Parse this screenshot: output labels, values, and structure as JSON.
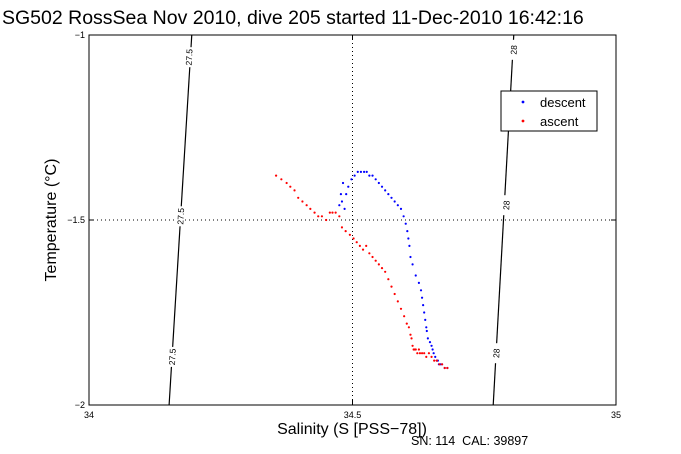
{
  "chart_data": {
    "type": "scatter",
    "title": "SG502 RossSea Nov 2010, dive 205 started 11-Dec-2010 16:42:16",
    "xlabel": "Salinity (S [PSS−78])",
    "ylabel": "Temperature (°C)",
    "xlim": [
      34,
      35
    ],
    "ylim": [
      -2,
      -1
    ],
    "xticks": [
      34,
      34.5,
      35
    ],
    "yticks": [
      -2,
      -1.5,
      -1
    ],
    "xtick_labels": [
      "34",
      "34.5",
      "35"
    ],
    "ytick_labels": [
      "−2",
      "−1.5",
      "−1"
    ],
    "grid": "dotted at x=34.5 and y=-1.5",
    "legend": {
      "placement": "top-right"
    },
    "footnote": "SN: 114  CAL: 39897",
    "isopycnals": [
      {
        "label": "27.5",
        "label_color": "#000000",
        "points": [
          [
            34.152,
            -2
          ],
          [
            34.195,
            -1
          ]
        ],
        "label_positions": [
          [
            34.19,
            -1.06
          ],
          [
            34.174,
            -1.49
          ],
          [
            34.158,
            -1.87
          ]
        ]
      },
      {
        "label": "28",
        "label_color": "#000000",
        "points": [
          [
            34.767,
            -2
          ],
          [
            34.806,
            -1
          ]
        ],
        "label_positions": [
          [
            34.806,
            -1.04
          ],
          [
            34.792,
            -1.46
          ],
          [
            34.773,
            -1.86
          ]
        ]
      }
    ],
    "series": [
      {
        "name": "descent",
        "color": "#0000ff",
        "x": [
          34.475,
          34.48,
          34.485,
          34.478,
          34.482,
          34.488,
          34.492,
          34.498,
          34.504,
          34.51,
          34.516,
          34.522,
          34.527,
          34.532,
          34.538,
          34.544,
          34.55,
          34.556,
          34.562,
          34.568,
          34.574,
          34.58,
          34.586,
          34.592,
          34.597,
          34.601,
          34.604,
          34.606,
          34.608,
          34.61,
          34.614,
          34.62,
          34.626,
          34.63,
          34.632,
          34.634,
          34.636,
          34.638,
          34.64,
          34.641,
          34.643,
          34.647,
          34.65,
          34.652,
          34.654,
          34.657,
          34.66,
          34.662,
          34.664,
          34.667,
          34.67,
          34.675,
          34.68
        ],
        "y": [
          -1.46,
          -1.45,
          -1.47,
          -1.43,
          -1.4,
          -1.43,
          -1.41,
          -1.39,
          -1.38,
          -1.37,
          -1.37,
          -1.37,
          -1.37,
          -1.38,
          -1.38,
          -1.39,
          -1.4,
          -1.41,
          -1.42,
          -1.43,
          -1.44,
          -1.45,
          -1.46,
          -1.47,
          -1.49,
          -1.51,
          -1.53,
          -1.55,
          -1.57,
          -1.6,
          -1.62,
          -1.65,
          -1.67,
          -1.69,
          -1.71,
          -1.73,
          -1.75,
          -1.77,
          -1.79,
          -1.8,
          -1.82,
          -1.83,
          -1.84,
          -1.85,
          -1.86,
          -1.87,
          -1.88,
          -1.88,
          -1.89,
          -1.89,
          -1.89,
          -1.9,
          -1.9
        ]
      },
      {
        "name": "ascent",
        "color": "#ff0000",
        "x": [
          34.355,
          34.365,
          34.375,
          34.382,
          34.39,
          34.397,
          34.405,
          34.413,
          34.42,
          34.428,
          34.435,
          34.442,
          34.45,
          34.457,
          34.462,
          34.468,
          34.475,
          34.48,
          34.487,
          34.495,
          34.502,
          34.508,
          34.514,
          34.52,
          34.526,
          34.532,
          34.538,
          34.544,
          34.55,
          34.556,
          34.562,
          34.568,
          34.574,
          34.58,
          34.586,
          34.592,
          34.598,
          34.603,
          34.607,
          34.61,
          34.612,
          34.614,
          34.616,
          34.618,
          34.62,
          34.623,
          34.626,
          34.628,
          34.632,
          34.636,
          34.64,
          34.645,
          34.65,
          34.655,
          34.66,
          34.665,
          34.67,
          34.675,
          34.68
        ],
        "y": [
          -1.38,
          -1.39,
          -1.4,
          -1.41,
          -1.42,
          -1.44,
          -1.45,
          -1.46,
          -1.47,
          -1.48,
          -1.49,
          -1.49,
          -1.5,
          -1.48,
          -1.48,
          -1.48,
          -1.49,
          -1.52,
          -1.53,
          -1.54,
          -1.55,
          -1.56,
          -1.57,
          -1.58,
          -1.57,
          -1.59,
          -1.6,
          -1.61,
          -1.62,
          -1.63,
          -1.64,
          -1.66,
          -1.68,
          -1.7,
          -1.72,
          -1.74,
          -1.76,
          -1.78,
          -1.79,
          -1.81,
          -1.82,
          -1.84,
          -1.85,
          -1.85,
          -1.85,
          -1.86,
          -1.85,
          -1.86,
          -1.86,
          -1.86,
          -1.87,
          -1.86,
          -1.87,
          -1.88,
          -1.88,
          -1.89,
          -1.89,
          -1.9,
          -1.9
        ]
      }
    ]
  }
}
